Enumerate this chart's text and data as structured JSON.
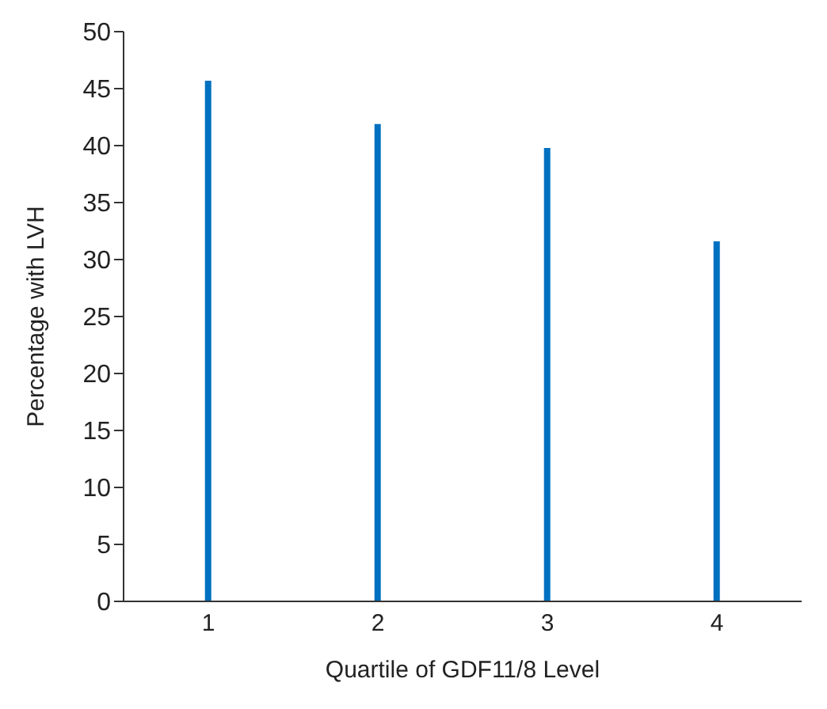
{
  "chart_data": {
    "type": "bar",
    "xlabel": "Quartile of GDF11/8 Level",
    "ylabel": "Percentage  with LVH",
    "categories": [
      "1",
      "2",
      "3",
      "4"
    ],
    "values": [
      45.7,
      41.9,
      39.8,
      31.6
    ],
    "color": "#0070c0",
    "ylim": [
      0,
      50
    ],
    "yticks": [
      0,
      5,
      10,
      15,
      20,
      25,
      30,
      35,
      40,
      45,
      50
    ],
    "grid": false,
    "legend": false
  }
}
